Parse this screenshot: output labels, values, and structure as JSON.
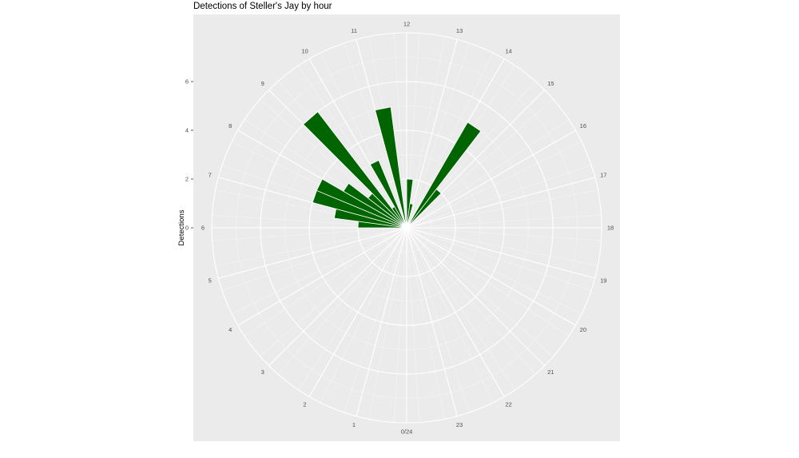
{
  "chart_data": {
    "type": "bar",
    "polar": true,
    "title": "Detections of Steller's Jay by hour",
    "xlabel": "",
    "ylabel": "Detections",
    "categories": [
      "0/24",
      "1",
      "2",
      "3",
      "4",
      "5",
      "6",
      "7",
      "8",
      "9",
      "10",
      "11",
      "12",
      "13",
      "14",
      "15",
      "16",
      "17",
      "18",
      "19",
      "20",
      "21",
      "22",
      "23"
    ],
    "hours": [
      6.0,
      6.5,
      7.0,
      7.5,
      8.0,
      8.5,
      9.0,
      9.5,
      10.0,
      10.5,
      11.0,
      11.5,
      12.0,
      12.5,
      13.0,
      13.5,
      14.0,
      14.5,
      15.0,
      15.5,
      16.0,
      16.5,
      17.0,
      17.5
    ],
    "values": [
      2,
      3,
      4,
      4,
      3,
      2,
      6,
      1,
      3,
      0,
      5,
      0,
      2,
      1,
      0,
      0,
      5,
      2,
      0,
      0,
      0,
      0,
      0,
      0
    ],
    "y_ticks": [
      0,
      2,
      4,
      6
    ],
    "ylim": [
      0,
      8
    ],
    "bar_color": "#006400",
    "panel_color": "#ebebeb",
    "grid": true
  }
}
